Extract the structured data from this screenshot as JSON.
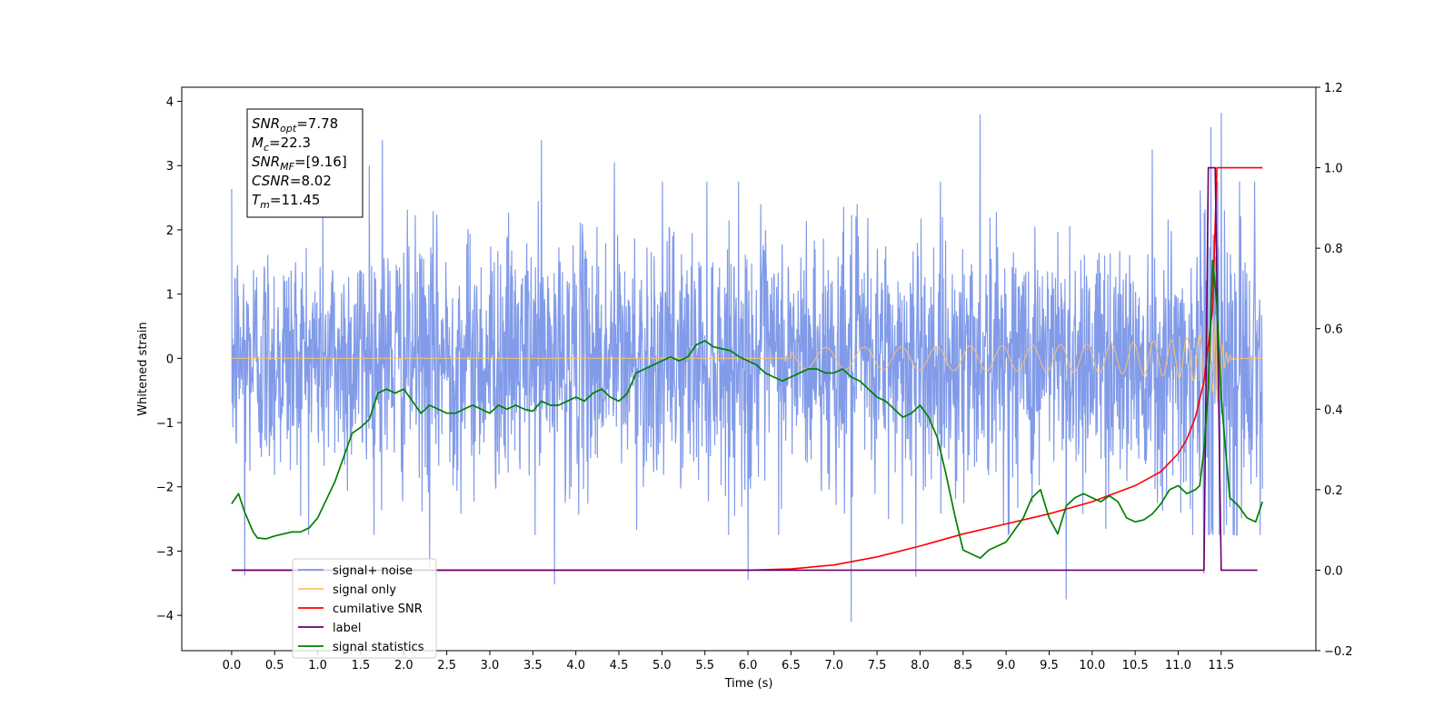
{
  "chart_data": {
    "type": "line",
    "xlabel": "Time (s)",
    "ylabel": "Whitened strain",
    "xlim": [
      -0.58,
      12.6
    ],
    "ylim": [
      -4.55,
      4.22
    ],
    "y2lim": [
      -0.2,
      1.2
    ],
    "grid": false,
    "xticks": [
      "0.0",
      "0.5",
      "1.0",
      "1.5",
      "2.0",
      "2.5",
      "3.0",
      "3.5",
      "4.0",
      "4.5",
      "5.0",
      "5.5",
      "6.0",
      "6.5",
      "7.0",
      "7.5",
      "8.0",
      "8.5",
      "9.0",
      "9.5",
      "10.0",
      "10.5",
      "11.0",
      "11.5"
    ],
    "yticks": [
      "4",
      "3",
      "2",
      "1",
      "0",
      "−1",
      "−2",
      "−3",
      "−4"
    ],
    "y2ticks": [
      "1.2",
      "1.0",
      "0.8",
      "0.6",
      "0.4",
      "0.2",
      "0.0",
      "−0.2"
    ],
    "info_box": [
      {
        "sym": "SNR",
        "sub": "opt",
        "val": "=7.78"
      },
      {
        "sym": "M",
        "sub": "c",
        "val": "=22.3"
      },
      {
        "sym": "SNR",
        "sub": "MF",
        "val": "=[9.16]"
      },
      {
        "sym": "CSNR",
        "sub": "",
        "val": "=8.02"
      },
      {
        "sym": "T",
        "sub": "m",
        "val": "=11.45"
      }
    ],
    "legend": {
      "placement": "lower-left",
      "entries": [
        {
          "label": "signal+ noise",
          "color": "#7b96e8"
        },
        {
          "label": "signal only",
          "color": "#ffc266"
        },
        {
          "label": "cumilative SNR",
          "color": "#ff0000"
        },
        {
          "label": "label",
          "color": "#6a006a"
        },
        {
          "label": "signal statistics",
          "color": "#008000"
        }
      ]
    },
    "series": [
      {
        "name": "signal+ noise",
        "axis": "left",
        "color": "#7b96e8",
        "t_start": 0.0,
        "t_end": 11.98,
        "amplitude_envelope": [
          [
            0.0,
            1.0
          ],
          [
            11.0,
            1.05
          ],
          [
            11.4,
            1.6
          ],
          [
            11.98,
            1.2
          ]
        ],
        "typical_range": [
          -2.5,
          2.5
        ],
        "spikes": [
          {
            "x": 0.15,
            "y": -3.38
          },
          {
            "x": 2.3,
            "y": -3.25
          },
          {
            "x": 3.75,
            "y": -3.52
          },
          {
            "x": 6.0,
            "y": -3.45
          },
          {
            "x": 7.2,
            "y": -4.1
          },
          {
            "x": 7.95,
            "y": -3.4
          },
          {
            "x": 9.7,
            "y": -3.75
          },
          {
            "x": 11.3,
            "y": -3.35
          },
          {
            "x": 1.6,
            "y": 3.0
          },
          {
            "x": 1.75,
            "y": 3.4
          },
          {
            "x": 3.6,
            "y": 3.4
          },
          {
            "x": 4.45,
            "y": 3.05
          },
          {
            "x": 8.7,
            "y": 3.8
          },
          {
            "x": 10.7,
            "y": 3.25
          },
          {
            "x": 11.38,
            "y": 3.6
          },
          {
            "x": 11.5,
            "y": 3.82
          }
        ]
      },
      {
        "name": "signal only",
        "axis": "left",
        "color": "#ffc266",
        "t_start": 0.0,
        "t_end": 11.98,
        "merger_time": 11.45,
        "peak_amplitude": 0.75
      },
      {
        "name": "cumilative SNR",
        "axis": "right",
        "color": "#ff0000",
        "x": [
          0.0,
          6.0,
          6.5,
          7.0,
          7.5,
          8.0,
          8.5,
          9.0,
          9.5,
          10.0,
          10.5,
          10.8,
          11.0,
          11.1,
          11.2,
          11.3,
          11.4,
          11.45,
          11.98
        ],
        "y": [
          0.0,
          0.0,
          0.003,
          0.013,
          0.033,
          0.06,
          0.09,
          0.115,
          0.14,
          0.17,
          0.21,
          0.245,
          0.29,
          0.325,
          0.38,
          0.47,
          0.65,
          1.0,
          1.0
        ]
      },
      {
        "name": "label",
        "axis": "right",
        "color": "#6a006a",
        "x": [
          0.0,
          11.3,
          11.35,
          11.43,
          11.5,
          11.92
        ],
        "y": [
          0.0,
          0.0,
          1.0,
          1.0,
          0.0,
          0.0
        ]
      },
      {
        "name": "signal statistics",
        "axis": "right",
        "color": "#008000",
        "x": [
          0.0,
          0.08,
          0.15,
          0.25,
          0.3,
          0.4,
          0.5,
          0.6,
          0.7,
          0.8,
          0.9,
          1.0,
          1.1,
          1.2,
          1.3,
          1.4,
          1.5,
          1.6,
          1.7,
          1.8,
          1.9,
          2.0,
          2.1,
          2.2,
          2.3,
          2.4,
          2.5,
          2.6,
          2.7,
          2.8,
          2.9,
          3.0,
          3.1,
          3.2,
          3.3,
          3.4,
          3.5,
          3.6,
          3.7,
          3.8,
          3.9,
          4.0,
          4.1,
          4.2,
          4.3,
          4.4,
          4.5,
          4.6,
          4.7,
          4.8,
          4.9,
          5.0,
          5.1,
          5.2,
          5.3,
          5.4,
          5.5,
          5.6,
          5.7,
          5.8,
          5.9,
          6.0,
          6.1,
          6.2,
          6.3,
          6.4,
          6.5,
          6.6,
          6.7,
          6.8,
          6.9,
          7.0,
          7.1,
          7.2,
          7.3,
          7.4,
          7.5,
          7.6,
          7.7,
          7.8,
          7.9,
          8.0,
          8.1,
          8.2,
          8.3,
          8.4,
          8.5,
          8.6,
          8.7,
          8.8,
          8.9,
          9.0,
          9.1,
          9.2,
          9.3,
          9.4,
          9.5,
          9.6,
          9.7,
          9.8,
          9.9,
          10.0,
          10.1,
          10.2,
          10.3,
          10.4,
          10.5,
          10.6,
          10.7,
          10.8,
          10.9,
          11.0,
          11.1,
          11.2,
          11.25,
          11.3,
          11.35,
          11.4,
          11.45,
          11.5,
          11.55,
          11.6,
          11.7,
          11.8,
          11.9,
          11.98
        ],
        "y": [
          0.165,
          0.19,
          0.145,
          0.095,
          0.08,
          0.078,
          0.085,
          0.09,
          0.095,
          0.095,
          0.105,
          0.13,
          0.175,
          0.22,
          0.28,
          0.34,
          0.355,
          0.375,
          0.44,
          0.45,
          0.44,
          0.45,
          0.42,
          0.39,
          0.41,
          0.4,
          0.39,
          0.39,
          0.4,
          0.41,
          0.4,
          0.39,
          0.41,
          0.4,
          0.41,
          0.4,
          0.395,
          0.42,
          0.41,
          0.41,
          0.42,
          0.43,
          0.42,
          0.44,
          0.45,
          0.43,
          0.42,
          0.44,
          0.49,
          0.5,
          0.51,
          0.52,
          0.53,
          0.52,
          0.53,
          0.56,
          0.57,
          0.555,
          0.55,
          0.545,
          0.53,
          0.52,
          0.51,
          0.49,
          0.48,
          0.47,
          0.48,
          0.49,
          0.5,
          0.5,
          0.49,
          0.49,
          0.5,
          0.48,
          0.47,
          0.45,
          0.43,
          0.42,
          0.4,
          0.38,
          0.39,
          0.41,
          0.38,
          0.33,
          0.24,
          0.14,
          0.05,
          0.04,
          0.03,
          0.05,
          0.06,
          0.07,
          0.1,
          0.13,
          0.18,
          0.2,
          0.13,
          0.09,
          0.16,
          0.18,
          0.19,
          0.18,
          0.17,
          0.185,
          0.17,
          0.13,
          0.12,
          0.125,
          0.14,
          0.165,
          0.2,
          0.21,
          0.19,
          0.2,
          0.21,
          0.3,
          0.45,
          0.77,
          0.66,
          0.43,
          0.3,
          0.18,
          0.16,
          0.13,
          0.12,
          0.17
        ]
      }
    ]
  }
}
